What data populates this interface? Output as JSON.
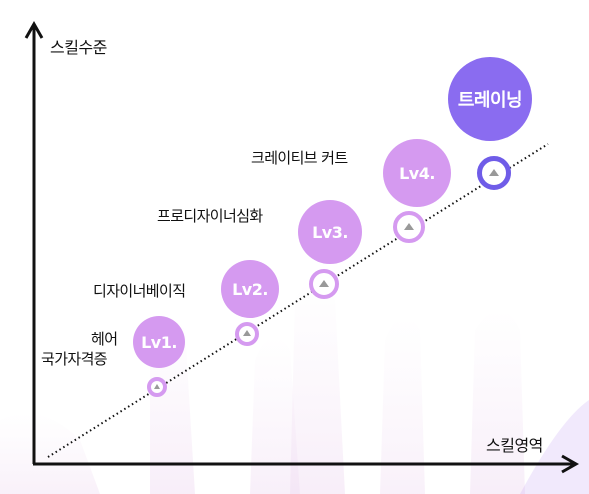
{
  "axes": {
    "y_label": "스킬수준",
    "x_label": "스킬영역"
  },
  "levels": [
    {
      "badge": "Lv1.",
      "skill_lines": [
        "헤어",
        "국가자격증"
      ]
    },
    {
      "badge": "Lv2.",
      "skill_lines": [
        "디자이너베이직"
      ]
    },
    {
      "badge": "Lv3.",
      "skill_lines": [
        "프로디자이너심화"
      ]
    },
    {
      "badge": "Lv4.",
      "skill_lines": [
        "크레이티브 커트"
      ]
    }
  ],
  "final": {
    "label": "트레이닝"
  },
  "colors": {
    "level_circle": "#d59af0",
    "final_circle": "#8a6cf0",
    "node_ring_final": "#6f5ce8",
    "axis": "#111111"
  }
}
